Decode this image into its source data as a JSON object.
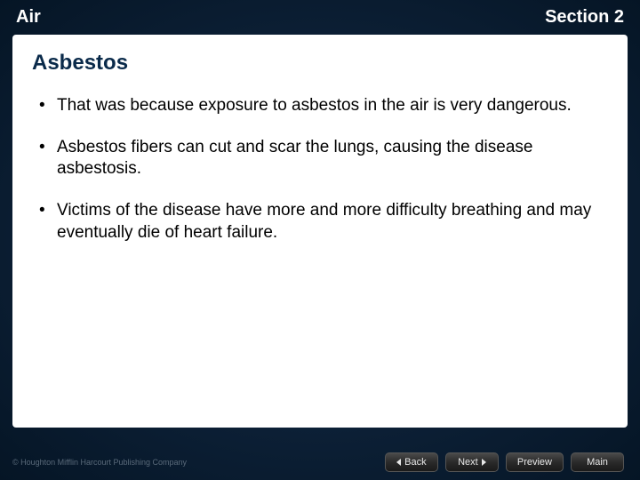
{
  "header": {
    "left": "Air",
    "right": "Section 2"
  },
  "slide": {
    "title": "Asbestos",
    "bullets": [
      "That was because exposure to asbestos in the air is very dangerous.",
      "Asbestos fibers can cut and scar the lungs, causing the disease asbestosis.",
      "Victims of the disease have more and more difficulty breathing and may eventually die of heart failure."
    ]
  },
  "footer": {
    "copyright": "© Houghton Mifflin Harcourt Publishing Company",
    "buttons": {
      "back": "Back",
      "next": "Next",
      "preview": "Preview",
      "main": "Main"
    }
  },
  "styling": {
    "background_gradient": [
      "#1a3a5a",
      "#0d2138",
      "#051525"
    ],
    "content_bg": "#ffffff",
    "header_text_color": "#ffffff",
    "title_color": "#0a2a4a",
    "body_text_color": "#000000",
    "copyright_color": "#5a6a7a",
    "button_text_color": "#e8e8e8",
    "header_fontsize": 20,
    "title_fontsize": 24,
    "body_fontsize": 19,
    "copyright_fontsize": 9,
    "button_fontsize": 11
  }
}
